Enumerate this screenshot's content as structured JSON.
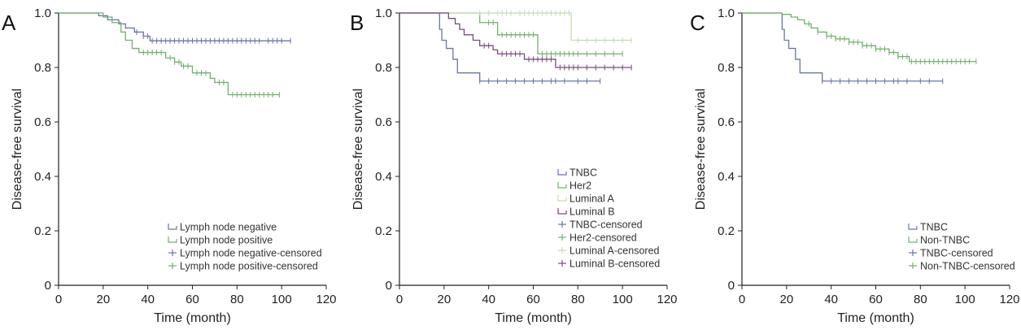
{
  "chart_data": [
    {
      "type": "line",
      "panel_label": "A",
      "xlabel": "Time (month)",
      "ylabel": "Disease-free survival",
      "xlim": [
        0,
        120
      ],
      "ylim": [
        0,
        1.0
      ],
      "xticks": [
        "0",
        "20",
        "40",
        "60",
        "80",
        "100",
        "120"
      ],
      "yticks": [
        "0",
        "0.2",
        "0.4",
        "0.6",
        "0.8",
        "1.0"
      ],
      "legend_position": "bottom-right",
      "legend": [
        "Lymph node negative",
        "Lymph node positive",
        "Lymph node negative-censored",
        "Lymph node positive-censored"
      ],
      "series": [
        {
          "name": "Lymph node negative",
          "color": "#6b74a8",
          "steps": [
            [
              0,
              1.0
            ],
            [
              18,
              0.99
            ],
            [
              22,
              0.975
            ],
            [
              27,
              0.96
            ],
            [
              30,
              0.945
            ],
            [
              34,
              0.93
            ],
            [
              38,
              0.915
            ],
            [
              41,
              0.898
            ],
            [
              104,
              0.898
            ]
          ],
          "censored": [
            35,
            38,
            40,
            42,
            44,
            46,
            48,
            50,
            52,
            54,
            56,
            58,
            60,
            62,
            64,
            66,
            68,
            70,
            72,
            74,
            76,
            78,
            80,
            82,
            84,
            86,
            88,
            90,
            94,
            96,
            98,
            100,
            104
          ]
        },
        {
          "name": "Lymph node positive",
          "color": "#6fb36a",
          "steps": [
            [
              0,
              1.0
            ],
            [
              20,
              0.985
            ],
            [
              24,
              0.965
            ],
            [
              28,
              0.93
            ],
            [
              30,
              0.9
            ],
            [
              33,
              0.87
            ],
            [
              36,
              0.855
            ],
            [
              48,
              0.835
            ],
            [
              52,
              0.82
            ],
            [
              55,
              0.805
            ],
            [
              60,
              0.78
            ],
            [
              68,
              0.76
            ],
            [
              70,
              0.745
            ],
            [
              76,
              0.7
            ],
            [
              99,
              0.7
            ]
          ],
          "censored": [
            38,
            40,
            42,
            44,
            46,
            50,
            52,
            54,
            56,
            58,
            62,
            64,
            66,
            72,
            74,
            78,
            80,
            82,
            84,
            86,
            88,
            90,
            92,
            94,
            96,
            99
          ]
        }
      ]
    },
    {
      "type": "line",
      "panel_label": "B",
      "xlabel": "Time (month)",
      "ylabel": "Disease-free survival",
      "xlim": [
        0,
        120
      ],
      "ylim": [
        0,
        1.0
      ],
      "xticks": [
        "0",
        "20",
        "40",
        "60",
        "80",
        "100",
        "120"
      ],
      "yticks": [
        "0",
        "0.2",
        "0.4",
        "0.6",
        "0.8",
        "1.0"
      ],
      "legend_position": "bottom-right",
      "legend": [
        "TNBC",
        "Her2",
        "Luminal A",
        "Luminal B",
        "TNBC-censored",
        "Her2-censored",
        "Luminal A-censored",
        "Luminal B-censored"
      ],
      "series": [
        {
          "name": "TNBC",
          "color": "#6b74a8",
          "steps": [
            [
              0,
              1.0
            ],
            [
              18,
              0.94
            ],
            [
              19,
              0.9
            ],
            [
              21,
              0.87
            ],
            [
              24,
              0.83
            ],
            [
              26,
              0.78
            ],
            [
              36,
              0.75
            ],
            [
              90,
              0.75
            ]
          ],
          "censored": [
            36,
            40,
            44,
            48,
            52,
            56,
            60,
            64,
            68,
            70,
            74,
            80,
            84,
            90
          ]
        },
        {
          "name": "Her2",
          "color": "#6fb36a",
          "steps": [
            [
              0,
              1.0
            ],
            [
              36,
              0.965
            ],
            [
              44,
              0.92
            ],
            [
              62,
              0.85
            ],
            [
              100,
              0.85
            ]
          ],
          "censored": [
            40,
            42,
            46,
            48,
            50,
            52,
            54,
            56,
            58,
            60,
            64,
            66,
            68,
            70,
            72,
            74,
            76,
            78,
            80,
            84,
            88,
            92,
            96,
            100
          ]
        },
        {
          "name": "Luminal A",
          "color": "#c5ddb0",
          "steps": [
            [
              0,
              1.0
            ],
            [
              77,
              0.9
            ],
            [
              104,
              0.9
            ]
          ],
          "censored": [
            36,
            40,
            44,
            46,
            48,
            50,
            54,
            56,
            58,
            60,
            62,
            64,
            66,
            68,
            70,
            72,
            74,
            76,
            80,
            84,
            88,
            92,
            96,
            100,
            104
          ]
        },
        {
          "name": "Luminal B",
          "color": "#7d4a7f",
          "steps": [
            [
              0,
              1.0
            ],
            [
              22,
              0.98
            ],
            [
              25,
              0.96
            ],
            [
              27,
              0.94
            ],
            [
              29,
              0.92
            ],
            [
              33,
              0.9
            ],
            [
              36,
              0.88
            ],
            [
              42,
              0.865
            ],
            [
              44,
              0.85
            ],
            [
              56,
              0.83
            ],
            [
              70,
              0.8
            ],
            [
              104,
              0.8
            ]
          ],
          "censored": [
            38,
            40,
            46,
            48,
            50,
            52,
            54,
            58,
            60,
            62,
            64,
            66,
            68,
            72,
            74,
            76,
            78,
            80,
            84,
            88,
            92,
            96,
            100,
            104
          ]
        }
      ]
    },
    {
      "type": "line",
      "panel_label": "C",
      "xlabel": "Time (month)",
      "ylabel": "Disease-free survival",
      "xlim": [
        0,
        120
      ],
      "ylim": [
        0,
        1.0
      ],
      "xticks": [
        "0",
        "20",
        "40",
        "60",
        "80",
        "100",
        "120"
      ],
      "yticks": [
        "0",
        "0.2",
        "0.4",
        "0.6",
        "0.8",
        "1.0"
      ],
      "legend_position": "bottom-right",
      "legend": [
        "TNBC",
        "Non-TNBC",
        "TNBC-censored",
        "Non-TNBC-censored"
      ],
      "series": [
        {
          "name": "TNBC",
          "color": "#6b74a8",
          "steps": [
            [
              0,
              1.0
            ],
            [
              18,
              0.94
            ],
            [
              19,
              0.9
            ],
            [
              21,
              0.87
            ],
            [
              24,
              0.83
            ],
            [
              26,
              0.78
            ],
            [
              36,
              0.75
            ],
            [
              90,
              0.75
            ]
          ],
          "censored": [
            36,
            40,
            44,
            48,
            52,
            56,
            60,
            64,
            68,
            70,
            74,
            80,
            84,
            90
          ]
        },
        {
          "name": "Non-TNBC",
          "color": "#6fb36a",
          "steps": [
            [
              0,
              1.0
            ],
            [
              18,
              0.995
            ],
            [
              22,
              0.985
            ],
            [
              25,
              0.975
            ],
            [
              28,
              0.96
            ],
            [
              31,
              0.945
            ],
            [
              34,
              0.93
            ],
            [
              38,
              0.915
            ],
            [
              42,
              0.905
            ],
            [
              48,
              0.893
            ],
            [
              54,
              0.88
            ],
            [
              60,
              0.868
            ],
            [
              66,
              0.855
            ],
            [
              70,
              0.84
            ],
            [
              75,
              0.822
            ],
            [
              105,
              0.822
            ]
          ],
          "censored": [
            30,
            34,
            38,
            40,
            42,
            44,
            46,
            48,
            50,
            52,
            54,
            56,
            58,
            60,
            62,
            64,
            66,
            68,
            70,
            72,
            74,
            76,
            78,
            80,
            82,
            84,
            86,
            88,
            90,
            92,
            94,
            96,
            98,
            100,
            102,
            105
          ]
        }
      ]
    }
  ]
}
